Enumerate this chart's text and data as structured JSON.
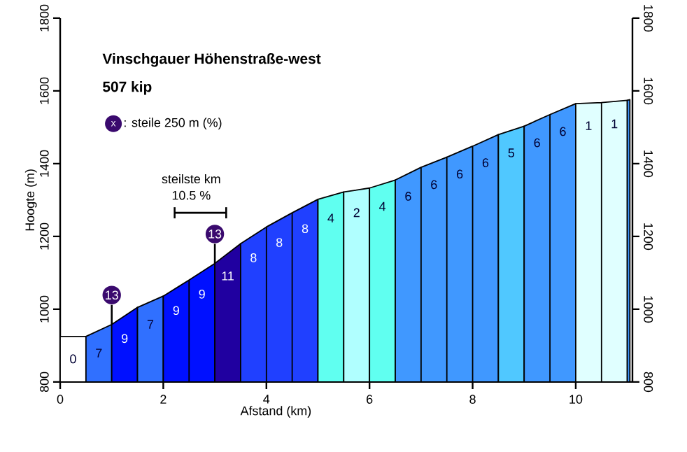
{
  "chart_data": {
    "type": "area",
    "title": "Vinschgauer Höhenstraße-west",
    "subtitle": "507 kip",
    "xlabel": "Afstand (km)",
    "ylabel": "Hoogte (m)",
    "series": [
      {
        "color": "#ffffff",
        "x": [
          0,
          0.5
        ],
        "values": [
          925,
          925
        ]
      },
      {
        "color": "#3070ff",
        "x": [
          0.5,
          1
        ],
        "values": [
          925,
          958
        ]
      },
      {
        "color": "#0010ff",
        "x": [
          1,
          1.5
        ],
        "values": [
          958,
          1005
        ]
      },
      {
        "color": "#3070ff",
        "x": [
          1.5,
          2
        ],
        "values": [
          1005,
          1036
        ]
      },
      {
        "color": "#0010ff",
        "x": [
          2,
          2.5,
          3
        ],
        "values": [
          1036,
          1080,
          1126
        ]
      },
      {
        "color": "#2000a0",
        "x": [
          3,
          3.5
        ],
        "values": [
          1126,
          1180
        ]
      },
      {
        "color": "#2040ff",
        "x": [
          3.5,
          4,
          4.5,
          5
        ],
        "values": [
          1180,
          1226,
          1265,
          1302
        ]
      },
      {
        "color": "#60fff0",
        "x": [
          5,
          5.5
        ],
        "values": [
          1302,
          1322
        ]
      },
      {
        "color": "#b0ffff",
        "x": [
          5.5,
          6
        ],
        "values": [
          1322,
          1333
        ]
      },
      {
        "color": "#60fff0",
        "x": [
          6,
          6.5
        ],
        "values": [
          1333,
          1355
        ]
      },
      {
        "color": "#4098ff",
        "x": [
          6.5,
          7,
          7.5,
          8,
          8.5
        ],
        "values": [
          1355,
          1390,
          1418,
          1448,
          1480
        ]
      },
      {
        "color": "#50c8ff",
        "x": [
          8.5,
          9
        ],
        "values": [
          1480,
          1503
        ]
      },
      {
        "color": "#4098ff",
        "x": [
          9,
          9.5,
          10
        ],
        "values": [
          1503,
          1535,
          1565
        ]
      },
      {
        "color": "#e0ffff",
        "x": [
          10,
          10.5,
          11
        ],
        "values": [
          1565,
          1568,
          1574
        ]
      },
      {
        "color": "#4098ff",
        "x": [
          11,
          11.05
        ],
        "values": [
          1574,
          1576
        ]
      },
      {
        "type": "line",
        "color": "#000000",
        "x": [
          2.22,
          3.22
        ],
        "values": [
          1265,
          1265
        ]
      }
    ],
    "xlim": [
      0,
      11.1
    ],
    "xticks": [
      0,
      2,
      4,
      6,
      8,
      10
    ],
    "ylim": [
      800,
      1800
    ],
    "yticks": [
      800,
      1000,
      1200,
      1400,
      1600,
      1800
    ],
    "y2lim": [
      800,
      1800
    ],
    "y2ticks": [
      800,
      1000,
      1200,
      1400,
      1600,
      1800
    ],
    "annotations": [
      "x",
      ": steile 250 m (%)",
      "steilste km",
      "10.5 %",
      {
        "text": "13",
        "x": 1,
        "y": 958
      },
      {
        "text": "13",
        "x": 3,
        "y": 1126
      },
      {
        "text": "0",
        "x": 0.25,
        "y": 925
      },
      {
        "text": "7",
        "x": 0.75,
        "y": 941
      },
      {
        "text": "9",
        "x": 1.25,
        "y": 981
      },
      {
        "text": "7",
        "x": 1.75,
        "y": 1020
      },
      {
        "text": "9",
        "x": 2.25,
        "y": 1058
      },
      {
        "text": "9",
        "x": 2.75,
        "y": 1103
      },
      {
        "text": "11",
        "x": 3.25,
        "y": 1153
      },
      {
        "text": "8",
        "x": 3.75,
        "y": 1203
      },
      {
        "text": "8",
        "x": 4.25,
        "y": 1245
      },
      {
        "text": "8",
        "x": 4.75,
        "y": 1283
      },
      {
        "text": "4",
        "x": 5.25,
        "y": 1312
      },
      {
        "text": "2",
        "x": 5.75,
        "y": 1327
      },
      {
        "text": "4",
        "x": 6.25,
        "y": 1344
      },
      {
        "text": "6",
        "x": 6.75,
        "y": 1372
      },
      {
        "text": "6",
        "x": 7.25,
        "y": 1404
      },
      {
        "text": "6",
        "x": 7.75,
        "y": 1433
      },
      {
        "text": "6",
        "x": 8.25,
        "y": 1464
      },
      {
        "text": "5",
        "x": 8.75,
        "y": 1491
      },
      {
        "text": "6",
        "x": 9.25,
        "y": 1519
      },
      {
        "text": "6",
        "x": 9.75,
        "y": 1550
      },
      {
        "text": "1",
        "x": 10.25,
        "y": 1566
      },
      {
        "text": "1",
        "x": 10.75,
        "y": 1571
      }
    ],
    "grid": false
  }
}
